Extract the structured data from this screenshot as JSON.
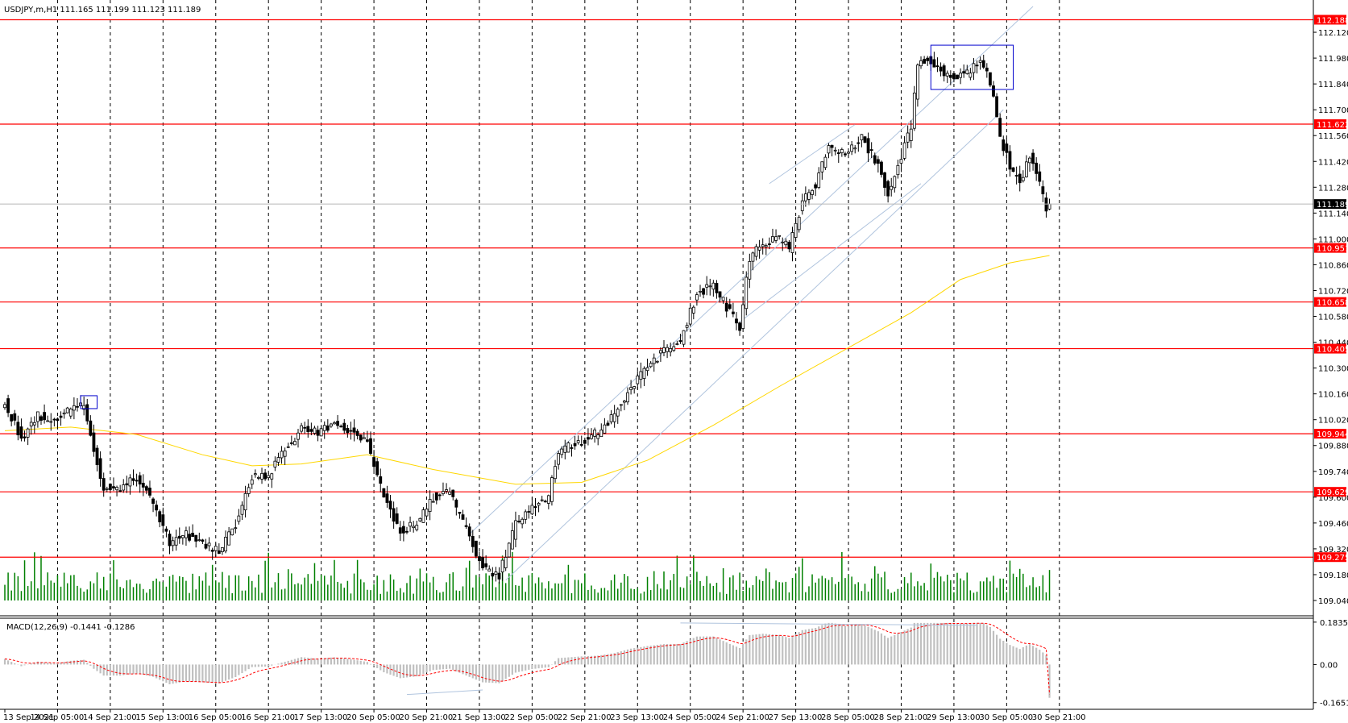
{
  "chart_title": "USDJPY,m,H1  111.165 111.199 111.123 111.189",
  "indicator_title": "MACD(12,26,9) -0.1441 -0.1286",
  "colors": {
    "background": "#ffffff",
    "candle": "#000000",
    "level": "#ff0000",
    "ma": "#ffd700",
    "volume": "#008000",
    "channel": "#b0c4de",
    "box": "#0000cd",
    "macd_hist": "#c0c0c0",
    "macd_signal": "#ff0000",
    "current_price": "#000000"
  },
  "chart_data": [
    {
      "type": "candlestick",
      "symbol": "USDJPY,m",
      "timeframe": "H1",
      "ohlc_readout": {
        "open": 111.165,
        "high": 111.199,
        "low": 111.123,
        "close": 111.189
      },
      "ylim": [
        109.04,
        112.26
      ],
      "y_ticks": [
        "112.120",
        "111.980",
        "111.840",
        "111.700",
        "111.560",
        "111.420",
        "111.280",
        "111.140",
        "111.000",
        "110.860",
        "110.720",
        "110.580",
        "110.440",
        "110.300",
        "110.160",
        "110.020",
        "109.880",
        "109.740",
        "109.600",
        "109.460",
        "109.320",
        "109.180",
        "109.040"
      ],
      "x_ticks": [
        "13 Sep 2021",
        "14 Sep 05:00",
        "14 Sep 21:00",
        "15 Sep 13:00",
        "16 Sep 05:00",
        "16 Sep 21:00",
        "17 Sep 13:00",
        "20 Sep 05:00",
        "20 Sep 21:00",
        "21 Sep 13:00",
        "22 Sep 05:00",
        "22 Sep 21:00",
        "23 Sep 13:00",
        "24 Sep 05:00",
        "24 Sep 21:00",
        "27 Sep 13:00",
        "28 Sep 05:00",
        "28 Sep 21:00",
        "29 Sep 13:00",
        "30 Sep 05:00",
        "30 Sep 21:00"
      ],
      "close_path": [
        {
          "t": 0,
          "price": 110.11
        },
        {
          "t": 5,
          "price": 109.92
        },
        {
          "t": 10,
          "price": 110.05
        },
        {
          "t": 15,
          "price": 110.0
        },
        {
          "t": 20,
          "price": 110.08
        },
        {
          "t": 24,
          "price": 110.1
        },
        {
          "t": 27,
          "price": 109.85
        },
        {
          "t": 30,
          "price": 109.66
        },
        {
          "t": 35,
          "price": 109.65
        },
        {
          "t": 40,
          "price": 109.7
        },
        {
          "t": 45,
          "price": 109.58
        },
        {
          "t": 50,
          "price": 109.35
        },
        {
          "t": 55,
          "price": 109.4
        },
        {
          "t": 60,
          "price": 109.35
        },
        {
          "t": 65,
          "price": 109.3
        },
        {
          "t": 70,
          "price": 109.45
        },
        {
          "t": 75,
          "price": 109.7
        },
        {
          "t": 80,
          "price": 109.72
        },
        {
          "t": 85,
          "price": 109.85
        },
        {
          "t": 90,
          "price": 109.98
        },
        {
          "t": 95,
          "price": 109.95
        },
        {
          "t": 100,
          "price": 110.0
        },
        {
          "t": 105,
          "price": 109.96
        },
        {
          "t": 110,
          "price": 109.9
        },
        {
          "t": 115,
          "price": 109.6
        },
        {
          "t": 120,
          "price": 109.42
        },
        {
          "t": 125,
          "price": 109.45
        },
        {
          "t": 130,
          "price": 109.6
        },
        {
          "t": 135,
          "price": 109.62
        },
        {
          "t": 140,
          "price": 109.42
        },
        {
          "t": 145,
          "price": 109.22
        },
        {
          "t": 150,
          "price": 109.18
        },
        {
          "t": 155,
          "price": 109.45
        },
        {
          "t": 160,
          "price": 109.55
        },
        {
          "t": 165,
          "price": 109.6
        },
        {
          "t": 168,
          "price": 109.85
        },
        {
          "t": 175,
          "price": 109.9
        },
        {
          "t": 180,
          "price": 109.95
        },
        {
          "t": 185,
          "price": 110.05
        },
        {
          "t": 190,
          "price": 110.2
        },
        {
          "t": 195,
          "price": 110.3
        },
        {
          "t": 200,
          "price": 110.4
        },
        {
          "t": 205,
          "price": 110.45
        },
        {
          "t": 210,
          "price": 110.7
        },
        {
          "t": 215,
          "price": 110.75
        },
        {
          "t": 220,
          "price": 110.6
        },
        {
          "t": 223,
          "price": 110.52
        },
        {
          "t": 226,
          "price": 110.9
        },
        {
          "t": 230,
          "price": 110.98
        },
        {
          "t": 235,
          "price": 111.0
        },
        {
          "t": 238,
          "price": 110.95
        },
        {
          "t": 242,
          "price": 111.2
        },
        {
          "t": 246,
          "price": 111.3
        },
        {
          "t": 250,
          "price": 111.5
        },
        {
          "t": 255,
          "price": 111.45
        },
        {
          "t": 260,
          "price": 111.55
        },
        {
          "t": 265,
          "price": 111.4
        },
        {
          "t": 268,
          "price": 111.25
        },
        {
          "t": 272,
          "price": 111.45
        },
        {
          "t": 275,
          "price": 111.6
        },
        {
          "t": 277,
          "price": 111.95
        },
        {
          "t": 280,
          "price": 111.97
        },
        {
          "t": 284,
          "price": 111.92
        },
        {
          "t": 288,
          "price": 111.87
        },
        {
          "t": 292,
          "price": 111.9
        },
        {
          "t": 296,
          "price": 111.98
        },
        {
          "t": 299,
          "price": 111.85
        },
        {
          "t": 302,
          "price": 111.55
        },
        {
          "t": 305,
          "price": 111.4
        },
        {
          "t": 308,
          "price": 111.3
        },
        {
          "t": 311,
          "price": 111.45
        },
        {
          "t": 314,
          "price": 111.3
        },
        {
          "t": 316,
          "price": 111.16
        },
        {
          "t": 317,
          "price": 111.189
        }
      ],
      "moving_average": [
        {
          "t": 0,
          "price": 109.96
        },
        {
          "t": 20,
          "price": 109.98
        },
        {
          "t": 40,
          "price": 109.94
        },
        {
          "t": 60,
          "price": 109.83
        },
        {
          "t": 75,
          "price": 109.77
        },
        {
          "t": 90,
          "price": 109.78
        },
        {
          "t": 110,
          "price": 109.83
        },
        {
          "t": 130,
          "price": 109.75
        },
        {
          "t": 155,
          "price": 109.67
        },
        {
          "t": 175,
          "price": 109.68
        },
        {
          "t": 195,
          "price": 109.8
        },
        {
          "t": 215,
          "price": 109.99
        },
        {
          "t": 235,
          "price": 110.2
        },
        {
          "t": 255,
          "price": 110.4
        },
        {
          "t": 275,
          "price": 110.6
        },
        {
          "t": 290,
          "price": 110.78
        },
        {
          "t": 305,
          "price": 110.87
        },
        {
          "t": 317,
          "price": 110.91
        }
      ],
      "horizontal_levels": [
        112.188,
        111.622,
        110.951,
        110.658,
        110.405,
        109.944,
        109.629,
        109.275
      ],
      "current_price": 111.189,
      "channel_lines": [
        {
          "from": {
            "t": 141,
            "price": 109.4
          },
          "to": {
            "t": 312,
            "price": 112.26
          }
        },
        {
          "from": {
            "t": 152,
            "price": 109.15
          },
          "to": {
            "t": 303,
            "price": 111.7
          }
        },
        {
          "from": {
            "t": 232,
            "price": 111.3
          },
          "to": {
            "t": 258,
            "price": 111.62
          }
        },
        {
          "from": {
            "t": 223,
            "price": 110.55
          },
          "to": {
            "t": 278,
            "price": 111.3
          }
        }
      ],
      "boxes": [
        {
          "t0": 23,
          "t1": 28,
          "p0": 110.08,
          "p1": 110.15
        },
        {
          "t0": 281,
          "t1": 306,
          "p0": 111.81,
          "p1": 112.05
        }
      ]
    },
    {
      "type": "bar",
      "name": "MACD(12,26,9)",
      "main": -0.1441,
      "signal": -0.1286,
      "ylim": [
        -0.18,
        0.19
      ],
      "y_ticks": [
        "0.1835",
        "0.00",
        "-0.1651"
      ]
    }
  ]
}
